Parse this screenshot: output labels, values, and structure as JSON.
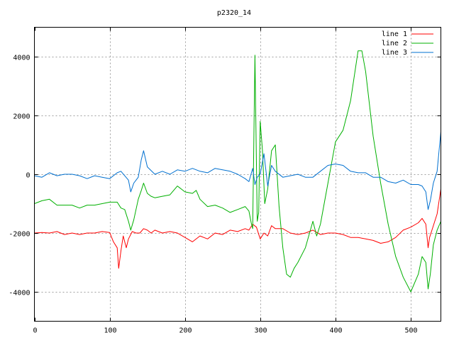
{
  "chart_data": {
    "type": "line",
    "title": "p2320_14",
    "xlabel": "",
    "ylabel": "",
    "xlim": [
      0,
      540
    ],
    "ylim": [
      -5000,
      5000
    ],
    "x_ticks": [
      0,
      100,
      200,
      300,
      400,
      500
    ],
    "y_ticks": [
      -4000,
      -2000,
      0,
      2000,
      4000
    ],
    "x_tick_labels": [
      "0",
      "100",
      "200",
      "300",
      "400",
      "500"
    ],
    "y_tick_labels": [
      "-4000",
      "-2000",
      "0",
      "2000",
      "4000"
    ],
    "grid": true,
    "legend_position": "top-right",
    "series": [
      {
        "name": "line 1",
        "color": "#ff0000",
        "points": [
          [
            0,
            -2000
          ],
          [
            10,
            -1980
          ],
          [
            20,
            -2000
          ],
          [
            30,
            -1950
          ],
          [
            40,
            -2050
          ],
          [
            50,
            -2000
          ],
          [
            60,
            -2050
          ],
          [
            70,
            -2000
          ],
          [
            80,
            -2000
          ],
          [
            90,
            -1950
          ],
          [
            100,
            -1980
          ],
          [
            105,
            -2300
          ],
          [
            110,
            -2500
          ],
          [
            112,
            -3200
          ],
          [
            115,
            -2600
          ],
          [
            118,
            -2100
          ],
          [
            122,
            -2500
          ],
          [
            125,
            -2200
          ],
          [
            130,
            -1950
          ],
          [
            135,
            -2000
          ],
          [
            140,
            -2000
          ],
          [
            145,
            -1850
          ],
          [
            150,
            -1900
          ],
          [
            155,
            -2000
          ],
          [
            160,
            -1900
          ],
          [
            170,
            -2000
          ],
          [
            180,
            -1950
          ],
          [
            190,
            -2000
          ],
          [
            200,
            -2150
          ],
          [
            210,
            -2300
          ],
          [
            220,
            -2100
          ],
          [
            230,
            -2200
          ],
          [
            240,
            -2000
          ],
          [
            250,
            -2050
          ],
          [
            260,
            -1900
          ],
          [
            270,
            -1950
          ],
          [
            280,
            -1850
          ],
          [
            285,
            -1900
          ],
          [
            290,
            -1700
          ],
          [
            295,
            -1800
          ],
          [
            300,
            -2200
          ],
          [
            305,
            -2000
          ],
          [
            310,
            -2100
          ],
          [
            315,
            -1750
          ],
          [
            320,
            -1850
          ],
          [
            330,
            -1850
          ],
          [
            340,
            -2000
          ],
          [
            350,
            -2050
          ],
          [
            360,
            -2000
          ],
          [
            370,
            -1900
          ],
          [
            380,
            -2050
          ],
          [
            390,
            -2000
          ],
          [
            400,
            -2000
          ],
          [
            410,
            -2050
          ],
          [
            420,
            -2150
          ],
          [
            430,
            -2150
          ],
          [
            440,
            -2200
          ],
          [
            450,
            -2250
          ],
          [
            460,
            -2350
          ],
          [
            470,
            -2300
          ],
          [
            480,
            -2150
          ],
          [
            490,
            -1900
          ],
          [
            500,
            -1800
          ],
          [
            510,
            -1650
          ],
          [
            515,
            -1500
          ],
          [
            520,
            -1700
          ],
          [
            523,
            -2500
          ],
          [
            525,
            -2150
          ],
          [
            530,
            -1750
          ],
          [
            535,
            -1350
          ],
          [
            540,
            -500
          ]
        ]
      },
      {
        "name": "line 2",
        "color": "#00b000",
        "points": [
          [
            0,
            -1000
          ],
          [
            10,
            -900
          ],
          [
            20,
            -850
          ],
          [
            30,
            -1050
          ],
          [
            40,
            -1050
          ],
          [
            50,
            -1050
          ],
          [
            60,
            -1150
          ],
          [
            70,
            -1050
          ],
          [
            80,
            -1050
          ],
          [
            90,
            -1000
          ],
          [
            100,
            -950
          ],
          [
            110,
            -950
          ],
          [
            115,
            -1150
          ],
          [
            120,
            -1200
          ],
          [
            125,
            -1600
          ],
          [
            128,
            -1900
          ],
          [
            132,
            -1550
          ],
          [
            138,
            -850
          ],
          [
            142,
            -550
          ],
          [
            145,
            -300
          ],
          [
            150,
            -650
          ],
          [
            155,
            -750
          ],
          [
            160,
            -800
          ],
          [
            170,
            -750
          ],
          [
            180,
            -700
          ],
          [
            190,
            -400
          ],
          [
            200,
            -600
          ],
          [
            210,
            -650
          ],
          [
            215,
            -550
          ],
          [
            220,
            -850
          ],
          [
            230,
            -1100
          ],
          [
            240,
            -1050
          ],
          [
            250,
            -1150
          ],
          [
            260,
            -1300
          ],
          [
            270,
            -1200
          ],
          [
            280,
            -1100
          ],
          [
            285,
            -1250
          ],
          [
            288,
            -1650
          ],
          [
            290,
            -1850
          ],
          [
            293,
            4050
          ],
          [
            296,
            -1600
          ],
          [
            298,
            -1300
          ],
          [
            300,
            1800
          ],
          [
            303,
            800
          ],
          [
            306,
            -1000
          ],
          [
            310,
            -500
          ],
          [
            315,
            800
          ],
          [
            320,
            1000
          ],
          [
            325,
            -1100
          ],
          [
            330,
            -2500
          ],
          [
            335,
            -3400
          ],
          [
            340,
            -3500
          ],
          [
            345,
            -3200
          ],
          [
            350,
            -3000
          ],
          [
            360,
            -2500
          ],
          [
            370,
            -1600
          ],
          [
            375,
            -2100
          ],
          [
            380,
            -1700
          ],
          [
            390,
            -300
          ],
          [
            400,
            1100
          ],
          [
            410,
            1500
          ],
          [
            420,
            2500
          ],
          [
            430,
            4200
          ],
          [
            435,
            4200
          ],
          [
            440,
            3500
          ],
          [
            450,
            1300
          ],
          [
            460,
            -300
          ],
          [
            470,
            -1700
          ],
          [
            480,
            -2800
          ],
          [
            490,
            -3500
          ],
          [
            500,
            -4000
          ],
          [
            510,
            -3400
          ],
          [
            515,
            -2800
          ],
          [
            520,
            -3000
          ],
          [
            523,
            -3900
          ],
          [
            526,
            -3400
          ],
          [
            530,
            -2400
          ],
          [
            535,
            -1900
          ],
          [
            540,
            -1600
          ]
        ]
      },
      {
        "name": "line 3",
        "color": "#0070d0",
        "points": [
          [
            0,
            -50
          ],
          [
            10,
            -100
          ],
          [
            20,
            50
          ],
          [
            30,
            -50
          ],
          [
            40,
            0
          ],
          [
            50,
            0
          ],
          [
            60,
            -50
          ],
          [
            70,
            -150
          ],
          [
            80,
            -50
          ],
          [
            90,
            -100
          ],
          [
            100,
            -150
          ],
          [
            110,
            50
          ],
          [
            115,
            100
          ],
          [
            120,
            -50
          ],
          [
            125,
            -200
          ],
          [
            128,
            -600
          ],
          [
            132,
            -300
          ],
          [
            138,
            -100
          ],
          [
            142,
            500
          ],
          [
            145,
            800
          ],
          [
            150,
            250
          ],
          [
            160,
            0
          ],
          [
            170,
            100
          ],
          [
            180,
            0
          ],
          [
            190,
            150
          ],
          [
            200,
            100
          ],
          [
            210,
            200
          ],
          [
            220,
            100
          ],
          [
            230,
            50
          ],
          [
            240,
            200
          ],
          [
            250,
            150
          ],
          [
            260,
            100
          ],
          [
            270,
            0
          ],
          [
            280,
            -150
          ],
          [
            285,
            -250
          ],
          [
            290,
            200
          ],
          [
            293,
            -350
          ],
          [
            296,
            -100
          ],
          [
            300,
            0
          ],
          [
            305,
            700
          ],
          [
            310,
            -400
          ],
          [
            315,
            300
          ],
          [
            320,
            100
          ],
          [
            330,
            -100
          ],
          [
            340,
            -50
          ],
          [
            350,
            0
          ],
          [
            360,
            -100
          ],
          [
            370,
            -100
          ],
          [
            380,
            100
          ],
          [
            390,
            300
          ],
          [
            400,
            350
          ],
          [
            410,
            300
          ],
          [
            420,
            100
          ],
          [
            430,
            50
          ],
          [
            440,
            50
          ],
          [
            450,
            -100
          ],
          [
            460,
            -100
          ],
          [
            470,
            -250
          ],
          [
            480,
            -300
          ],
          [
            490,
            -200
          ],
          [
            500,
            -350
          ],
          [
            510,
            -350
          ],
          [
            515,
            -400
          ],
          [
            520,
            -600
          ],
          [
            523,
            -1200
          ],
          [
            526,
            -900
          ],
          [
            530,
            -300
          ],
          [
            535,
            100
          ],
          [
            540,
            1450
          ]
        ]
      }
    ]
  }
}
